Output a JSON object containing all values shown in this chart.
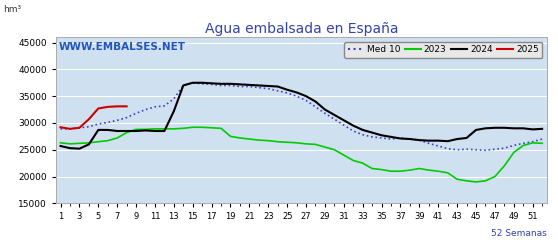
{
  "title": "Agua embalsada en España",
  "ylabel": "hm³",
  "xlabel_note": "52 Semanas",
  "background_color": "#d6e8f5",
  "plot_bg_color": "#cfe0f0",
  "outer_bg_color": "#ffffff",
  "ylim": [
    15000,
    46000
  ],
  "yticks": [
    15000,
    20000,
    25000,
    30000,
    35000,
    40000,
    45000
  ],
  "xticks": [
    1,
    3,
    5,
    7,
    9,
    11,
    13,
    15,
    17,
    19,
    21,
    23,
    25,
    27,
    29,
    31,
    33,
    35,
    37,
    39,
    41,
    43,
    45,
    47,
    49,
    51
  ],
  "watermark": "WWW.EMBALSES.NET",
  "legend_labels": [
    "Med 10",
    "2023",
    "2024",
    "2025"
  ],
  "legend_colors": [
    "#4040cc",
    "#00cc00",
    "#000000",
    "#cc0000"
  ],
  "med10": [
    28900,
    28900,
    29100,
    29300,
    29800,
    30100,
    30500,
    31000,
    31800,
    32500,
    33000,
    33200,
    34500,
    37000,
    37500,
    37300,
    37200,
    37000,
    37000,
    36800,
    36800,
    36600,
    36400,
    36000,
    35600,
    35000,
    34200,
    33000,
    31800,
    30700,
    29600,
    28500,
    27800,
    27400,
    27200,
    27000,
    27200,
    27000,
    26800,
    26200,
    25700,
    25200,
    25000,
    25100,
    25000,
    24900,
    25100,
    25300,
    25800,
    26200,
    26500,
    27000
  ],
  "yr2023": [
    26300,
    26100,
    26200,
    26300,
    26500,
    26700,
    27200,
    28200,
    28800,
    28800,
    28900,
    28900,
    28900,
    29000,
    29200,
    29200,
    29100,
    29000,
    27500,
    27200,
    27000,
    26800,
    26700,
    26500,
    26400,
    26300,
    26100,
    26000,
    25500,
    25000,
    24000,
    23000,
    22500,
    21500,
    21300,
    21000,
    21000,
    21200,
    21500,
    21200,
    21000,
    20700,
    19500,
    19200,
    19000,
    19200,
    20000,
    22000,
    24500,
    25800,
    26300,
    26200
  ],
  "yr2024": [
    25700,
    25300,
    25200,
    26000,
    28700,
    28700,
    28500,
    28500,
    28500,
    28600,
    28500,
    28500,
    32200,
    37000,
    37500,
    37500,
    37400,
    37300,
    37300,
    37200,
    37100,
    37000,
    36900,
    36800,
    36200,
    35700,
    35000,
    34000,
    32500,
    31500,
    30500,
    29500,
    28700,
    28200,
    27700,
    27400,
    27100,
    27000,
    26800,
    26700,
    26700,
    26600,
    27000,
    27200,
    28700,
    29000,
    29100,
    29100,
    29000,
    29000,
    28800,
    28900
  ],
  "yr2025": [
    29200,
    28900,
    29100,
    30700,
    32700,
    33000,
    33100,
    33100,
    null,
    null,
    null,
    null,
    null,
    null,
    null,
    null,
    null,
    null,
    null,
    null,
    null,
    null,
    null,
    null,
    null,
    null,
    null,
    null,
    null,
    null,
    null,
    null,
    null,
    null,
    null,
    null,
    null,
    null,
    null,
    null,
    null,
    null,
    null,
    null,
    null,
    null,
    null,
    null,
    null,
    null,
    null,
    null
  ]
}
